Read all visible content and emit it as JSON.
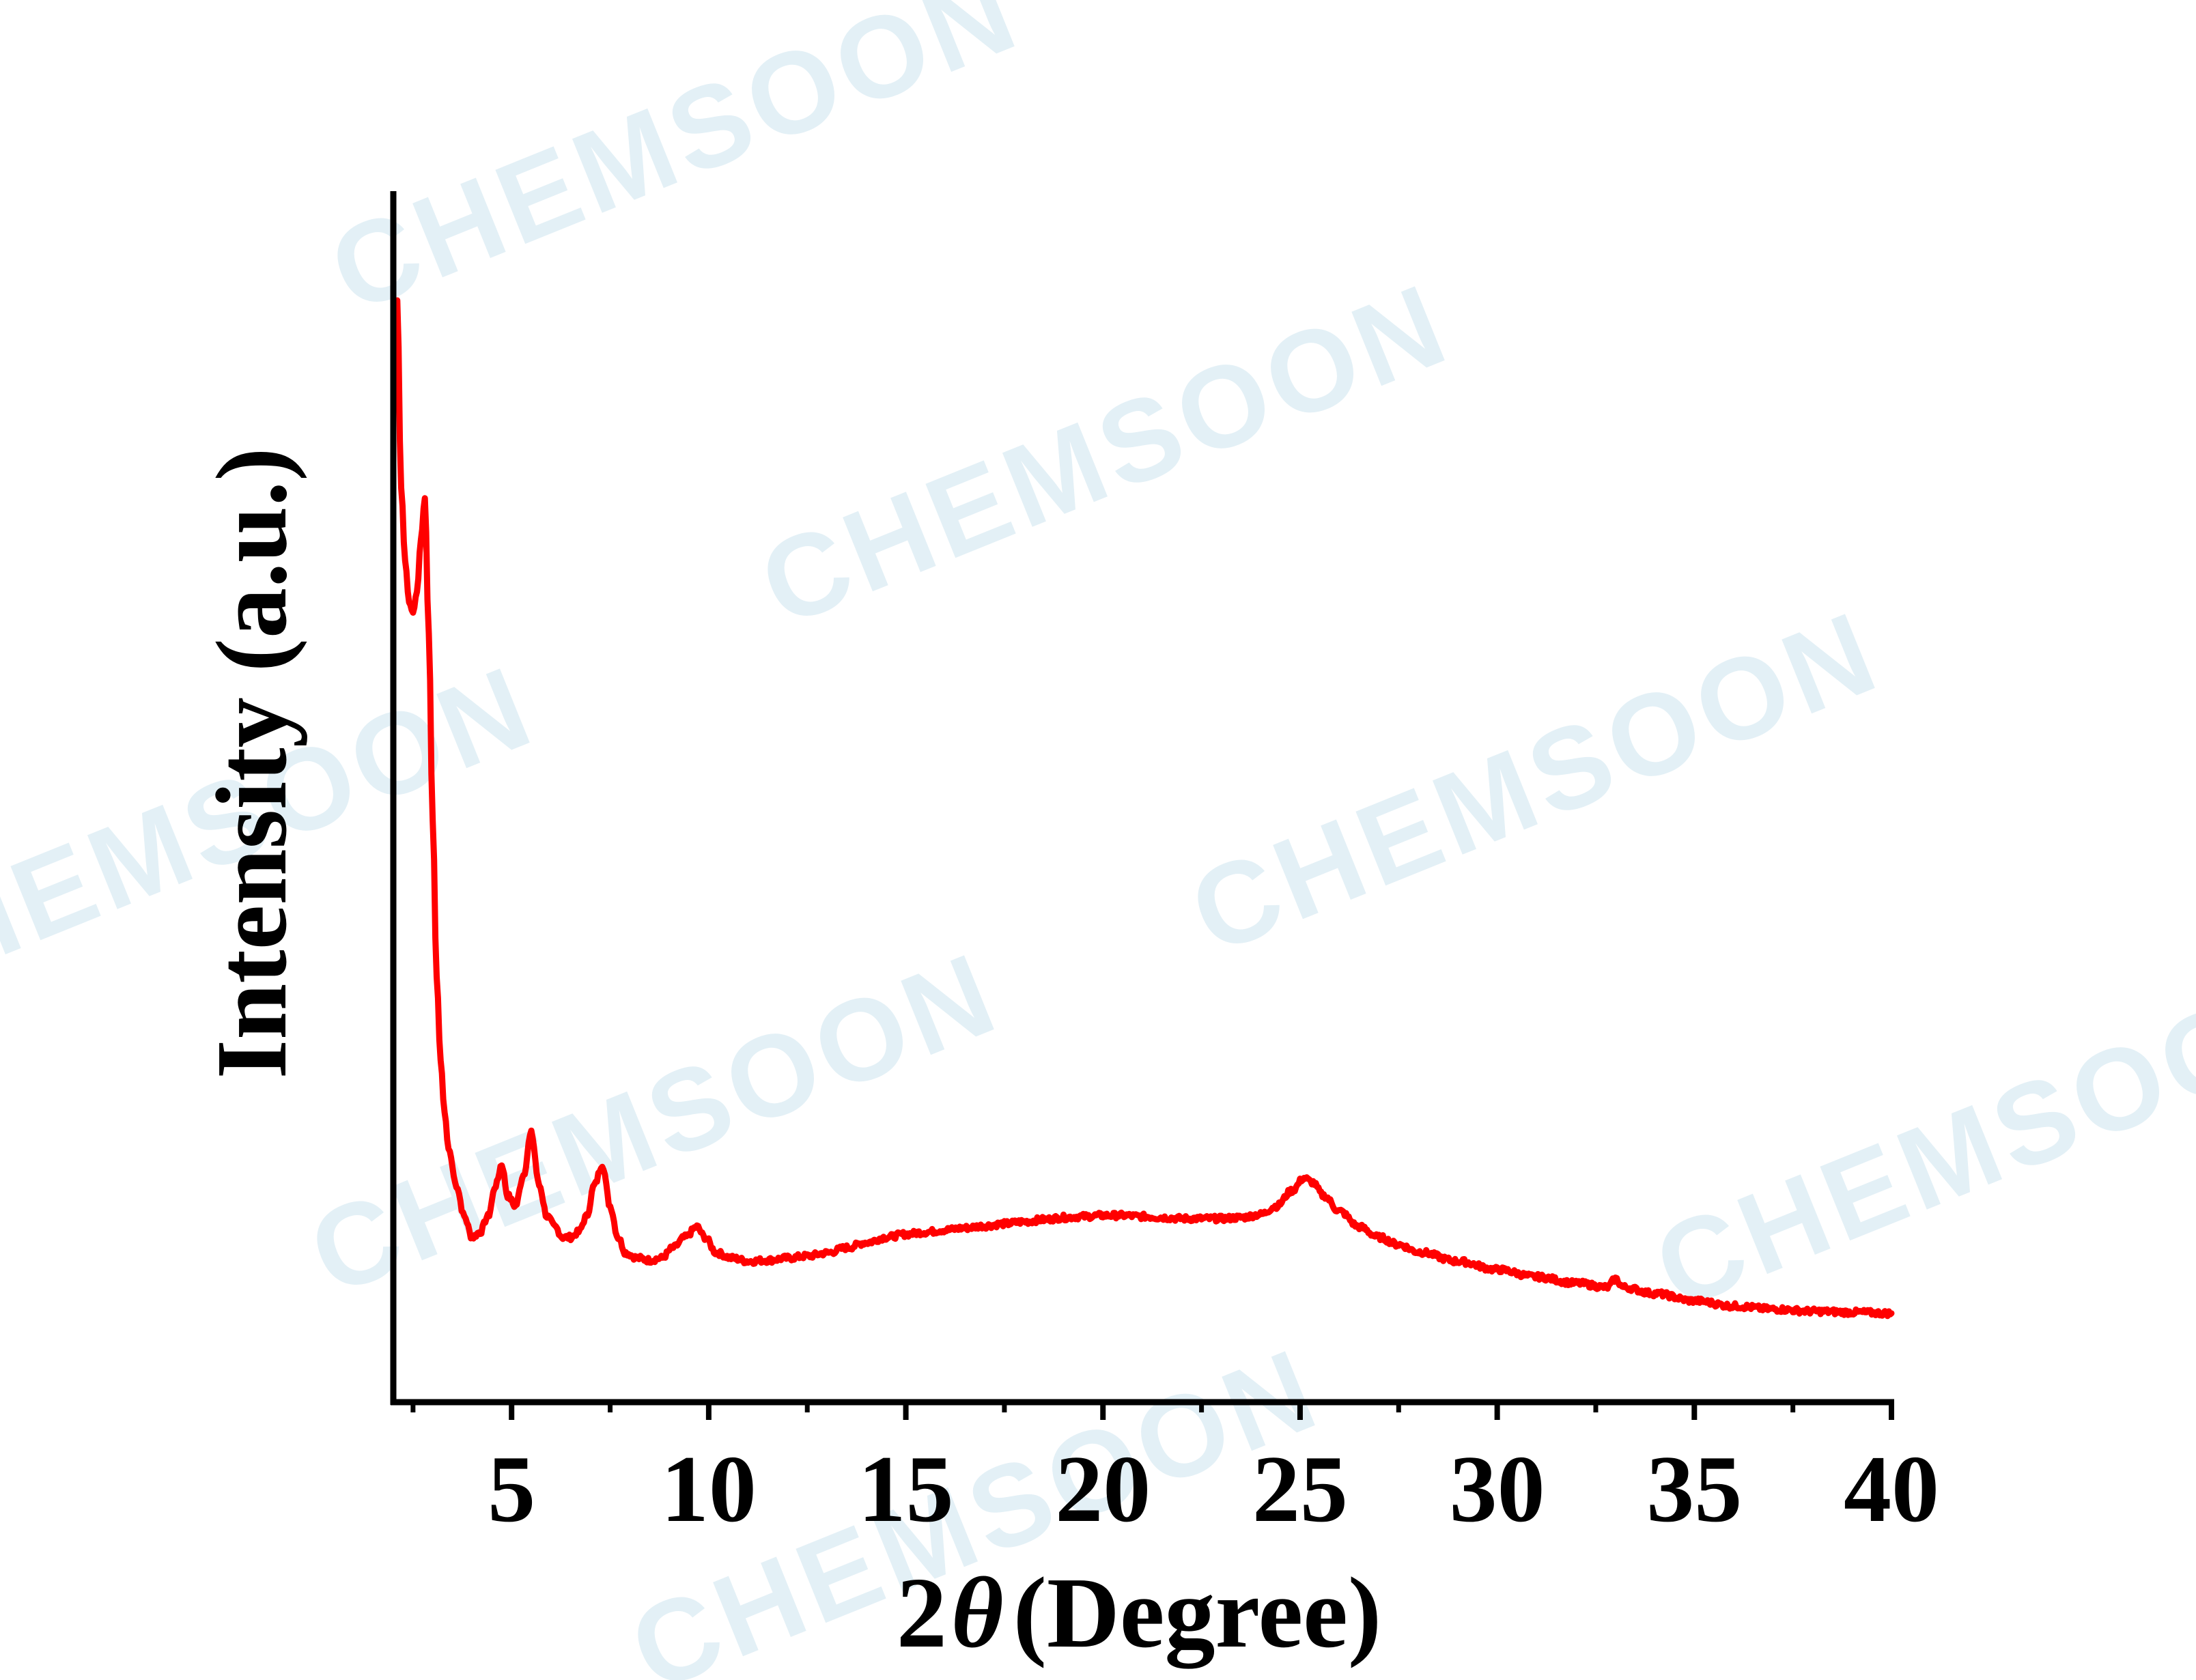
{
  "watermark": {
    "text": "CHEMSOON",
    "color": "#e3f0f6"
  },
  "chart_data": {
    "type": "line",
    "title": "",
    "xlabel": {
      "prefix": "2",
      "symbol": "θ",
      "suffix": "(Degree)"
    },
    "ylabel": "Intensity (a.u.)",
    "xlim": [
      2,
      40
    ],
    "ylim": [
      0,
      100
    ],
    "xticks": [
      5,
      10,
      15,
      20,
      25,
      30,
      35,
      40
    ],
    "y_tick_labels": false,
    "grid": false,
    "legend": false,
    "line_color": "#ff0000",
    "axis_color": "#000000",
    "series": [
      {
        "x": [
          2.1,
          2.2,
          2.3,
          2.4,
          2.5,
          2.6,
          2.7,
          2.8,
          2.9,
          3.0,
          3.1,
          3.2,
          3.3,
          3.4,
          3.6,
          3.8,
          4.0,
          4.2,
          4.4,
          4.6,
          4.75,
          4.9,
          5.1,
          5.3,
          5.5,
          5.7,
          5.9,
          6.1,
          6.3,
          6.5,
          6.7,
          6.9,
          7.1,
          7.3,
          7.5,
          7.7,
          7.9,
          8.2,
          8.5,
          8.8,
          9.1,
          9.4,
          9.7,
          9.9,
          10.2,
          10.6,
          11.0,
          11.5,
          12.0,
          12.5,
          13.0,
          13.5,
          14.0,
          14.5,
          15.0,
          15.5,
          16.0,
          16.5,
          17.0,
          17.5,
          18.0,
          18.5,
          19.0,
          19.5,
          20.0,
          20.5,
          21.0,
          21.5,
          22.0,
          22.5,
          23.0,
          23.5,
          24.0,
          24.4,
          24.8,
          25.1,
          25.3,
          25.6,
          26.0,
          26.5,
          27.0,
          27.5,
          28.0,
          29.0,
          30.0,
          31.0,
          32.0,
          32.8,
          33.0,
          33.2,
          34.0,
          35.0,
          36.0,
          37.0,
          38.0,
          39.0,
          40.0
        ],
        "y": [
          100,
          82,
          75,
          71,
          70,
          72,
          77,
          81,
          68,
          50,
          35,
          27,
          22,
          18.5,
          15,
          12,
          10,
          10.5,
          12,
          15,
          17,
          14,
          13,
          16,
          20,
          15,
          12,
          11,
          10,
          10,
          10.5,
          12,
          15,
          17,
          13,
          10,
          8.5,
          8,
          7.8,
          8,
          9,
          10,
          11,
          10,
          8.5,
          8,
          7.7,
          7.8,
          8,
          8.2,
          8.5,
          9,
          9.5,
          10,
          10.3,
          10.5,
          10.7,
          10.9,
          11.1,
          11.3,
          11.5,
          11.7,
          11.9,
          12.0,
          12.1,
          12.1,
          12.0,
          11.9,
          11.8,
          11.8,
          11.8,
          11.9,
          12.2,
          13,
          14.5,
          15.7,
          15.3,
          14,
          12.5,
          11,
          10,
          9.3,
          8.6,
          7.7,
          6.9,
          6.2,
          5.6,
          5.2,
          6,
          5.2,
          4.6,
          3.9,
          3.4,
          3.1,
          2.9,
          2.8,
          2.7
        ]
      }
    ]
  }
}
